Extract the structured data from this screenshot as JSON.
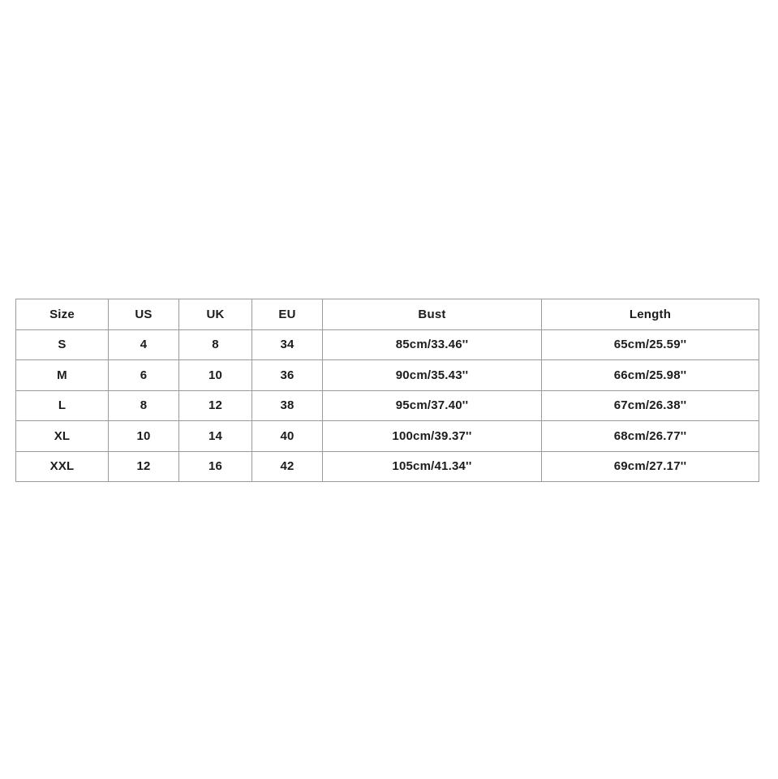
{
  "accent_colors": {
    "background": "#ffffff",
    "border": "#9a9a9a",
    "text": "#1c1c1c"
  },
  "chart_data": {
    "type": "table",
    "title": "",
    "columns": [
      "Size",
      "US",
      "UK",
      "EU",
      "Bust",
      "Length"
    ],
    "rows": [
      [
        "S",
        "4",
        "8",
        "34",
        "85cm/33.46''",
        "65cm/25.59''"
      ],
      [
        "M",
        "6",
        "10",
        "36",
        "90cm/35.43''",
        "66cm/25.98''"
      ],
      [
        "L",
        "8",
        "12",
        "38",
        "95cm/37.40''",
        "67cm/26.38''"
      ],
      [
        "XL",
        "10",
        "14",
        "40",
        "100cm/39.37''",
        "68cm/26.77''"
      ],
      [
        "XXL",
        "12",
        "16",
        "42",
        "105cm/41.34''",
        "69cm/27.17''"
      ]
    ]
  }
}
